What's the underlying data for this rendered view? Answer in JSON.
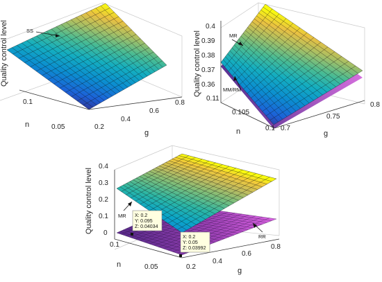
{
  "colors": {
    "parula": [
      "#352a87",
      "#0f5cdd",
      "#1481d6",
      "#06a4ca",
      "#2eb7a4",
      "#87bf77",
      "#d1bb59",
      "#fec832",
      "#f9fb0e"
    ],
    "rr_low": "#5e2c8e",
    "rr_high": "#e266e8",
    "mesh": "#101010",
    "axis": "#333333",
    "tooltip_bg": "#ffffe0"
  },
  "chart_data": [
    {
      "type": "surface3d",
      "xlabel": "g",
      "ylabel": "n",
      "zlabel": "Quality control level",
      "xticks": [
        "0.2",
        "0.4",
        "0.6",
        "0.8"
      ],
      "yticks": [
        "0.05",
        "0.1"
      ],
      "zticks": [],
      "grid": true,
      "series": [
        {
          "name": "SS",
          "x_range": [
            0.2,
            0.8
          ],
          "y_range": [
            0.05,
            0.11
          ],
          "z_corners": {
            "low_g_low_n": 0.05,
            "high_g_low_n": 0.2,
            "low_g_high_n": 0.3,
            "high_g_high_n": 0.4
          }
        }
      ]
    },
    {
      "type": "surface3d",
      "xlabel": "g",
      "ylabel": "n",
      "zlabel": "Quality control level",
      "xticks": [
        "0.7",
        "0.75",
        "0.8"
      ],
      "yticks": [
        "0.1",
        "0.105",
        "0.11"
      ],
      "zticks": [
        "0.36",
        "0.37",
        "0.38",
        "0.39",
        "0.4"
      ],
      "zlim": [
        0.355,
        0.405
      ],
      "grid": true,
      "series": [
        {
          "name": "MR",
          "x_range": [
            0.7,
            0.8
          ],
          "y_range": [
            0.1,
            0.11
          ],
          "z_corners": {
            "low_g_low_n": 0.356,
            "high_g_low_n": 0.372,
            "low_g_high_n": 0.38,
            "high_g_high_n": 0.402
          }
        },
        {
          "name": "MM/RM",
          "x_range": [
            0.7,
            0.8
          ],
          "y_range": [
            0.1,
            0.11
          ],
          "z_corners": {
            "low_g_low_n": 0.354,
            "high_g_low_n": 0.368,
            "low_g_high_n": 0.376,
            "high_g_high_n": 0.398
          }
        }
      ]
    },
    {
      "type": "surface3d",
      "xlabel": "g",
      "ylabel": "n",
      "zlabel": "Quality control level",
      "xticks": [
        "0.2",
        "0.4",
        "0.6",
        "0.8"
      ],
      "yticks": [
        "0.05",
        "0.1"
      ],
      "zticks": [
        "0",
        "0.1",
        "0.2",
        "0.3",
        "0.4"
      ],
      "zlim": [
        0,
        0.42
      ],
      "grid": true,
      "series": [
        {
          "name": "MR",
          "x_range": [
            0.2,
            0.8
          ],
          "y_range": [
            0.05,
            0.11
          ],
          "z_corners": {
            "low_g_low_n": 0.12,
            "high_g_low_n": 0.24,
            "low_g_high_n": 0.27,
            "high_g_high_n": 0.4
          }
        },
        {
          "name": "RR",
          "x_range": [
            0.2,
            0.8
          ],
          "y_range": [
            0.05,
            0.11
          ],
          "z_corners": {
            "low_g_low_n": 0.03992,
            "high_g_low_n": 0.06,
            "low_g_high_n": 0.042,
            "high_g_high_n": 0.08
          }
        }
      ],
      "datatips": [
        {
          "lines": [
            "X: 0.2",
            "Y: 0.095",
            "Z: 0.04034"
          ]
        },
        {
          "lines": [
            "X: 0.2",
            "Y: 0.05",
            "Z: 0.03992"
          ]
        }
      ]
    }
  ]
}
